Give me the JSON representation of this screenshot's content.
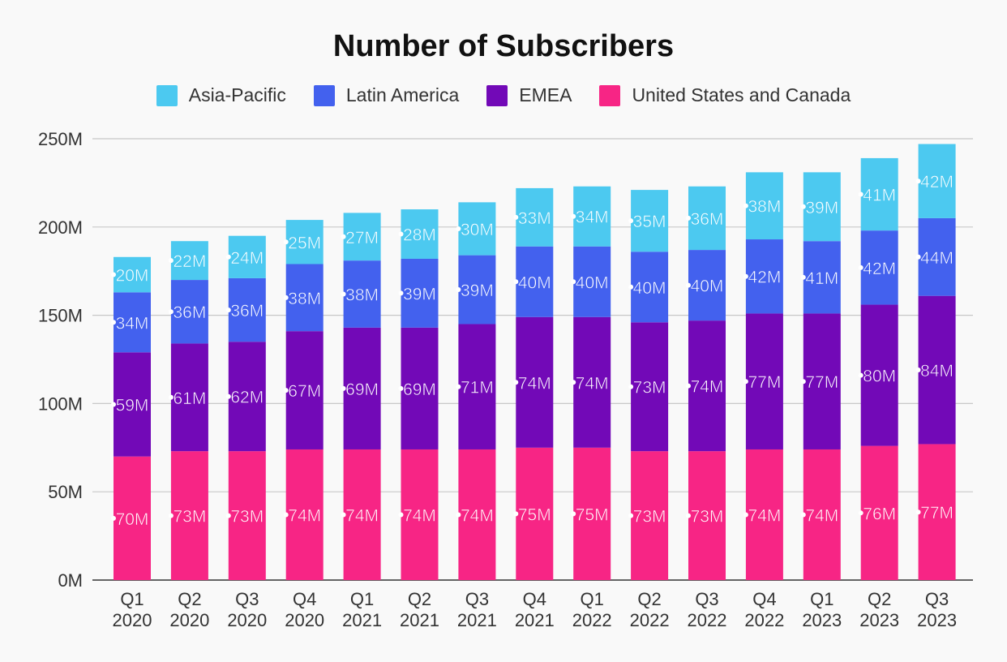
{
  "chart_data": {
    "type": "bar",
    "stacked": true,
    "title": "Number of Subscribers",
    "categories": [
      "Q1 2020",
      "Q2 2020",
      "Q3 2020",
      "Q4 2020",
      "Q1 2021",
      "Q2 2021",
      "Q3 2021",
      "Q4 2021",
      "Q1 2022",
      "Q2 2022",
      "Q3 2022",
      "Q4 2022",
      "Q1 2023",
      "Q2 2023",
      "Q3 2023"
    ],
    "category_lines": [
      [
        "Q1",
        "2020"
      ],
      [
        "Q2",
        "2020"
      ],
      [
        "Q3",
        "2020"
      ],
      [
        "Q4",
        "2020"
      ],
      [
        "Q1",
        "2021"
      ],
      [
        "Q2",
        "2021"
      ],
      [
        "Q3",
        "2021"
      ],
      [
        "Q4",
        "2021"
      ],
      [
        "Q1",
        "2022"
      ],
      [
        "Q2",
        "2022"
      ],
      [
        "Q3",
        "2022"
      ],
      [
        "Q4",
        "2022"
      ],
      [
        "Q1",
        "2023"
      ],
      [
        "Q2",
        "2023"
      ],
      [
        "Q3",
        "2023"
      ]
    ],
    "series": [
      {
        "name": "United States and Canada",
        "color": "#f72585",
        "values": [
          70,
          73,
          73,
          74,
          74,
          74,
          74,
          75,
          75,
          73,
          73,
          74,
          74,
          76,
          77
        ]
      },
      {
        "name": "EMEA",
        "color": "#7209b7",
        "values": [
          59,
          61,
          62,
          67,
          69,
          69,
          71,
          74,
          74,
          73,
          74,
          77,
          77,
          80,
          84
        ]
      },
      {
        "name": "Latin America",
        "color": "#4361ee",
        "values": [
          34,
          36,
          36,
          38,
          38,
          39,
          39,
          40,
          40,
          40,
          40,
          42,
          41,
          42,
          44
        ]
      },
      {
        "name": "Asia-Pacific",
        "color": "#4cc9f0",
        "values": [
          20,
          22,
          24,
          25,
          27,
          28,
          30,
          33,
          34,
          35,
          36,
          38,
          39,
          41,
          42
        ]
      }
    ],
    "legend_order": [
      "Asia-Pacific",
      "Latin America",
      "EMEA",
      "United States and Canada"
    ],
    "legend_position": "top-center",
    "ylim": [
      0,
      250
    ],
    "yticks": [
      0,
      50,
      100,
      150,
      200,
      250
    ],
    "ytick_labels": [
      "0M",
      "50M",
      "100M",
      "150M",
      "200M",
      "250M"
    ],
    "value_suffix": "M",
    "grid": true,
    "xlabel": "",
    "ylabel": ""
  }
}
